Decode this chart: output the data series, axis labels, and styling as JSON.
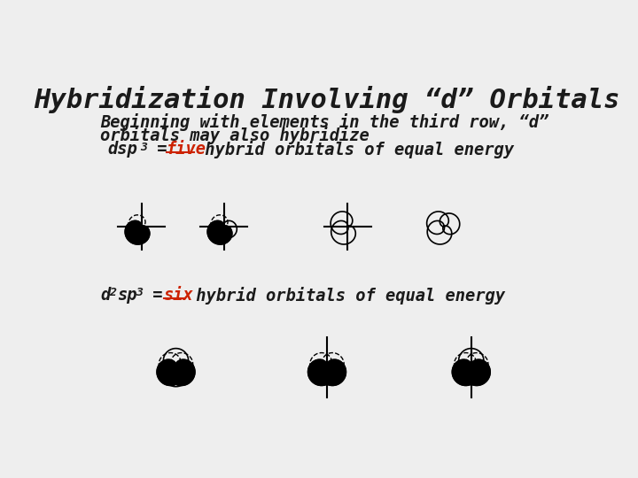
{
  "title": "Hybridization Involving “d” Orbitals",
  "bg_color": "#eeeeee",
  "text_color": "#1a1a1a",
  "line1": "Beginning with elements in the third row, “d”",
  "line2": "orbitals may also hybridize",
  "five_color": "#cc2200",
  "six_color": "#cc2200",
  "font_family": "monospace"
}
